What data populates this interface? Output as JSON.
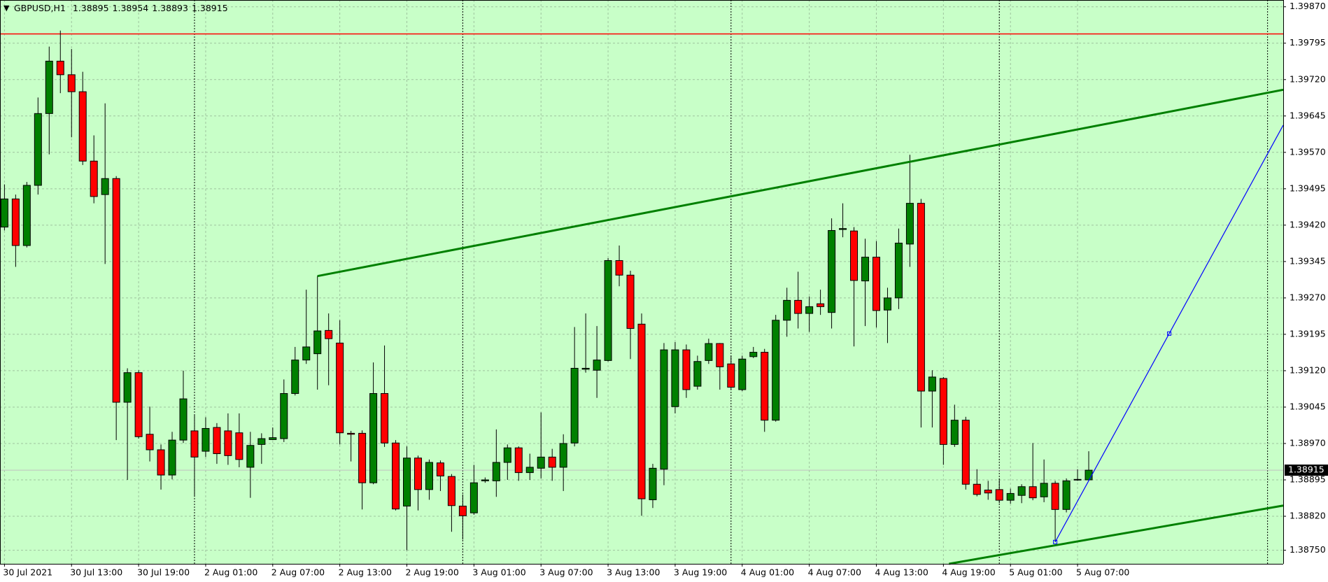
{
  "chart_data": {
    "type": "candlestick",
    "symbol": "GBPUSD,H1",
    "categories": [
      "30 Jul 2021",
      null,
      null,
      null,
      null,
      null,
      "30 Jul 13:00",
      null,
      null,
      null,
      null,
      null,
      "30 Jul 19:00",
      null,
      null,
      null,
      null,
      null,
      "2 Aug 01:00",
      null,
      null,
      null,
      null,
      null,
      "2 Aug 07:00",
      null,
      null,
      null,
      null,
      null,
      "2 Aug 13:00",
      null,
      null,
      null,
      null,
      null,
      "2 Aug 19:00",
      null,
      null,
      null,
      null,
      null,
      "3 Aug 01:00",
      null,
      null,
      null,
      null,
      null,
      "3 Aug 07:00",
      null,
      null,
      null,
      null,
      null,
      "3 Aug 13:00",
      null,
      null,
      null,
      null,
      null,
      "3 Aug 19:00",
      null,
      null,
      null,
      null,
      null,
      "4 Aug 01:00",
      null,
      null,
      null,
      null,
      null,
      "4 Aug 07:00",
      null,
      null,
      null,
      null,
      null,
      "4 Aug 13:00",
      null,
      null,
      null,
      null,
      null,
      "4 Aug 19:00",
      null,
      null,
      null,
      null,
      null,
      "5 Aug 01:00",
      null,
      null,
      null,
      null,
      null,
      "5 Aug 07:00",
      null
    ],
    "open": [
      1.39416,
      1.39474,
      1.39378,
      1.39502,
      1.3965,
      1.39758,
      1.3973,
      1.39695,
      1.39552,
      1.39483,
      1.39516,
      1.39055,
      1.39116,
      1.38989,
      1.38957,
      1.38905,
      1.38977,
      1.38996,
      1.38954,
      1.39003,
      1.38996,
      1.38992,
      1.38921,
      1.38968,
      1.38978,
      1.3898,
      1.39073,
      1.39142,
      1.39155,
      1.39203,
      1.39177,
      1.38991,
      1.38991,
      1.38889,
      1.39073,
      1.38971,
      1.38841,
      1.3894,
      1.38875,
      1.3893,
      1.38902,
      1.38841,
      1.38827,
      1.38893,
      1.38893,
      1.38931,
      1.38961,
      1.3891,
      1.38919,
      1.38942,
      1.38921,
      1.38971,
      1.39123,
      1.39121,
      1.39141,
      1.39347,
      1.39317,
      1.39216,
      1.38854,
      1.38917,
      1.39046,
      1.39163,
      1.39088,
      1.39141,
      1.39176,
      1.39134,
      1.39081,
      1.39149,
      1.39158,
      1.39018,
      1.39224,
      1.39265,
      1.39238,
      1.39258,
      1.3924,
      1.39411,
      1.39408,
      1.39305,
      1.39354,
      1.39245,
      1.3927,
      1.39381,
      1.39465,
      1.39078,
      1.39104,
      1.38968,
      1.39018,
      1.38886,
      1.38874,
      1.38875,
      1.38853,
      1.38863,
      1.38881,
      1.3886,
      1.38888,
      1.38834,
      1.38895,
      1.38895
    ],
    "high": [
      1.39504,
      1.39483,
      1.39509,
      1.39683,
      1.39788,
      1.39821,
      1.39783,
      1.39736,
      1.39605,
      1.39671,
      1.39521,
      1.39125,
      1.39121,
      1.39046,
      1.38968,
      1.38994,
      1.3912,
      1.39029,
      1.39024,
      1.39012,
      1.39032,
      1.39032,
      1.38994,
      1.38991,
      1.39003,
      1.39102,
      1.39169,
      1.39287,
      1.39315,
      1.39238,
      1.39224,
      1.38996,
      1.38997,
      1.39137,
      1.39172,
      1.38977,
      1.38964,
      1.38945,
      1.38937,
      1.38935,
      1.38907,
      1.38865,
      1.38926,
      1.389,
      1.38999,
      1.38968,
      1.38964,
      1.38949,
      1.39034,
      1.38959,
      1.38989,
      1.3921,
      1.39238,
      1.39212,
      1.39352,
      1.39378,
      1.39326,
      1.39238,
      1.38928,
      1.39177,
      1.39179,
      1.39174,
      1.39151,
      1.39186,
      1.39177,
      1.39151,
      1.39151,
      1.39169,
      1.39165,
      1.39235,
      1.39291,
      1.39324,
      1.39273,
      1.39287,
      1.39434,
      1.39465,
      1.39416,
      1.39392,
      1.39387,
      1.39291,
      1.39413,
      1.39565,
      1.39474,
      1.39121,
      1.39107,
      1.3905,
      1.39025,
      1.38917,
      1.38893,
      1.38898,
      1.38877,
      1.38886,
      1.38971,
      1.38937,
      1.38893,
      1.38898,
      1.38917,
      1.38954
    ],
    "low": [
      1.39409,
      1.39334,
      1.39374,
      1.39483,
      1.39566,
      1.39692,
      1.39601,
      1.39544,
      1.39465,
      1.3934,
      1.38977,
      1.38895,
      1.3898,
      1.38933,
      1.38875,
      1.38896,
      1.38971,
      1.3886,
      1.38942,
      1.38928,
      1.38926,
      1.38921,
      1.38858,
      1.38928,
      1.38977,
      1.38973,
      1.39069,
      1.39134,
      1.39081,
      1.3909,
      1.38968,
      1.38933,
      1.38834,
      1.38886,
      1.38963,
      1.38832,
      1.3875,
      1.38832,
      1.38854,
      1.38872,
      1.38788,
      1.38772,
      1.38823,
      1.38889,
      1.3886,
      1.38895,
      1.38893,
      1.38895,
      1.38898,
      1.38893,
      1.38872,
      1.38964,
      1.39116,
      1.39064,
      1.39139,
      1.39294,
      1.39144,
      1.38821,
      1.38837,
      1.38884,
      1.39032,
      1.39064,
      1.39081,
      1.39134,
      1.39081,
      1.39081,
      1.39078,
      1.39146,
      1.38994,
      1.39015,
      1.3919,
      1.39207,
      1.392,
      1.39235,
      1.39207,
      1.39395,
      1.3917,
      1.39212,
      1.39209,
      1.39177,
      1.39247,
      1.39334,
      1.39003,
      1.39003,
      1.38926,
      1.38963,
      1.38875,
      1.38861,
      1.38854,
      1.38847,
      1.38846,
      1.38847,
      1.38853,
      1.38849,
      1.38767,
      1.38828,
      1.38893,
      1.38893
    ],
    "close": [
      1.39474,
      1.39378,
      1.39502,
      1.3965,
      1.39758,
      1.3973,
      1.39695,
      1.39552,
      1.39479,
      1.39516,
      1.39055,
      1.39116,
      1.38984,
      1.38957,
      1.38905,
      1.38977,
      1.39062,
      1.38942,
      1.39001,
      1.38949,
      1.38945,
      1.38937,
      1.38966,
      1.3898,
      1.38982,
      1.39073,
      1.39142,
      1.39169,
      1.39202,
      1.39186,
      1.38992,
      1.38989,
      1.38889,
      1.39073,
      1.38971,
      1.38835,
      1.3894,
      1.38875,
      1.38931,
      1.38903,
      1.38842,
      1.38821,
      1.38889,
      1.38895,
      1.38931,
      1.38961,
      1.3891,
      1.38921,
      1.38942,
      1.38921,
      1.3897,
      1.39125,
      1.39125,
      1.39142,
      1.39347,
      1.39317,
      1.39207,
      1.38856,
      1.38919,
      1.39163,
      1.39163,
      1.39081,
      1.39139,
      1.39176,
      1.39128,
      1.39086,
      1.39144,
      1.39158,
      1.39018,
      1.39224,
      1.39265,
      1.39238,
      1.39252,
      1.39252,
      1.39409,
      1.39413,
      1.39306,
      1.39354,
      1.39244,
      1.3927,
      1.39383,
      1.39465,
      1.39078,
      1.39107,
      1.38968,
      1.39018,
      1.38886,
      1.38865,
      1.38868,
      1.38853,
      1.38867,
      1.38881,
      1.38858,
      1.38888,
      1.38834,
      1.38893,
      1.38896,
      1.38915
    ],
    "up_color": "#008000",
    "down_color": "#ff0000",
    "background": "#c8ffc8",
    "xlim": [
      -0.4,
      114.4
    ],
    "ylim": [
      1.38722,
      1.39884
    ],
    "yticks": [
      {
        "value": 1.3987,
        "label": "1.39870"
      },
      1.39795,
      {
        "value": 1.3972,
        "label": "1.39720"
      },
      1.39645,
      {
        "value": 1.3957,
        "label": "1.39570"
      },
      1.39495,
      {
        "value": 1.3942,
        "label": "1.39420"
      },
      1.39345,
      {
        "value": 1.3927,
        "label": "1.39270"
      },
      1.39195,
      {
        "value": 1.3912,
        "label": "1.39120"
      },
      1.39045,
      {
        "value": 1.3897,
        "label": "1.38970"
      },
      1.38895,
      {
        "value": 1.3882,
        "label": "1.38820"
      },
      {
        "value": 1.3875,
        "label": "1.38750"
      }
    ],
    "grid": true,
    "separators": [
      17,
      41,
      65,
      89,
      113
    ],
    "hlines": [
      {
        "value": 1.39814,
        "color": "#ff0000"
      }
    ],
    "trendlines": [
      {
        "x": [
          28,
          114.4
        ],
        "y": [
          1.39315,
          1.39699
        ],
        "color": "#008000"
      },
      {
        "x": [
          84.5,
          114.4
        ],
        "y": [
          1.38722,
          1.38842
        ],
        "color": "#008000"
      },
      {
        "x": [
          94,
          114.4
        ],
        "y": [
          1.38767,
          1.39626
        ],
        "color": "#0000ff"
      }
    ]
  }
}
